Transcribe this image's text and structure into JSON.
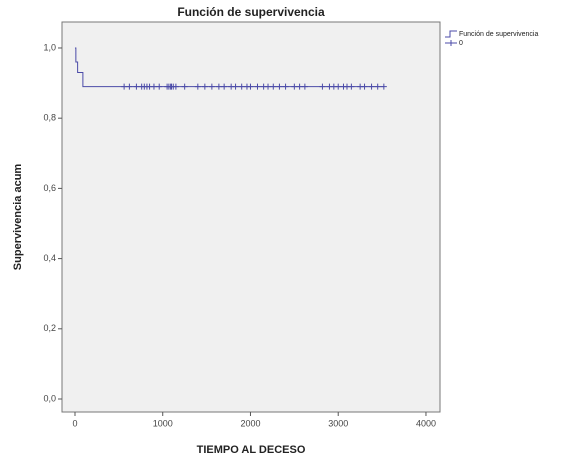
{
  "chart_data": {
    "type": "step",
    "title": "Función de supervivencia",
    "xlabel": "TIEMPO AL DECESO",
    "ylabel": "Supervivencia acum",
    "xlim": [
      -148,
      4160
    ],
    "ylim": [
      -0.037,
      1.074
    ],
    "xticks": [
      0,
      1000,
      2000,
      3000,
      4000
    ],
    "yticks": [
      {
        "value": 0,
        "label": "0,0"
      },
      {
        "value": 0.2,
        "label": "0,2"
      },
      {
        "value": 0.4,
        "label": "0,4"
      },
      {
        "value": 0.6,
        "label": "0,6"
      },
      {
        "value": 0.8,
        "label": "0,8"
      },
      {
        "value": 1,
        "label": "1,0"
      }
    ],
    "legend": "outside-top-right",
    "series": [
      {
        "name": "Función de supervivencia",
        "color": "#4b4ba8",
        "style": "step",
        "x": [
          0,
          10,
          30,
          90,
          3520
        ],
        "values": [
          1.0,
          0.96,
          0.93,
          0.89,
          0.89
        ]
      },
      {
        "name": "0",
        "color": "#4b4ba8",
        "style": "cross",
        "x": [
          560,
          620,
          700,
          760,
          790,
          820,
          850,
          900,
          960,
          1050,
          1070,
          1090,
          1100,
          1120,
          1150,
          1250,
          1400,
          1480,
          1560,
          1640,
          1700,
          1780,
          1830,
          1900,
          1960,
          2000,
          2080,
          2150,
          2200,
          2260,
          2330,
          2400,
          2500,
          2560,
          2620,
          2820,
          2900,
          2950,
          3000,
          3060,
          3100,
          3150,
          3250,
          3300,
          3380,
          3450,
          3520
        ],
        "values": [
          0.89,
          0.89,
          0.89,
          0.89,
          0.89,
          0.89,
          0.89,
          0.89,
          0.89,
          0.89,
          0.89,
          0.89,
          0.89,
          0.89,
          0.89,
          0.89,
          0.89,
          0.89,
          0.89,
          0.89,
          0.89,
          0.89,
          0.89,
          0.89,
          0.89,
          0.89,
          0.89,
          0.89,
          0.89,
          0.89,
          0.89,
          0.89,
          0.89,
          0.89,
          0.89,
          0.89,
          0.89,
          0.89,
          0.89,
          0.89,
          0.89,
          0.89,
          0.89,
          0.89,
          0.89,
          0.89,
          0.89
        ]
      }
    ]
  }
}
